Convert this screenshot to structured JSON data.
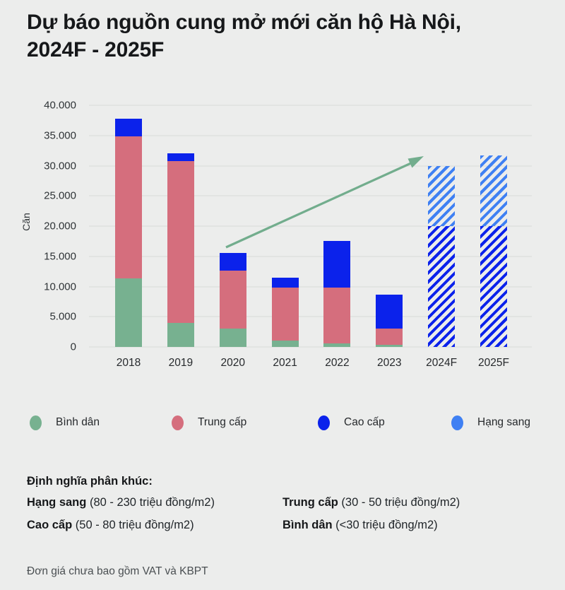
{
  "title": {
    "line1": "Dự báo nguồn cung mở mới căn hộ Hà Nội,",
    "line2": "2024F - 2025F"
  },
  "chart_data": {
    "type": "bar",
    "stacked": true,
    "title": "Dự báo nguồn cung mở mới căn hộ Hà Nội, 2024F - 2025F",
    "ylabel": "Căn",
    "ylim": [
      0,
      40000
    ],
    "grid": true,
    "yticks": [
      {
        "value": 0,
        "label": "0"
      },
      {
        "value": 5000,
        "label": "5.000"
      },
      {
        "value": 10000,
        "label": "10.000"
      },
      {
        "value": 15000,
        "label": "15.000"
      },
      {
        "value": 20000,
        "label": "20.000"
      },
      {
        "value": 25000,
        "label": "25.000"
      },
      {
        "value": 30000,
        "label": "30.000"
      },
      {
        "value": 35000,
        "label": "35.000"
      },
      {
        "value": 40000,
        "label": "40.000"
      }
    ],
    "categories": [
      "2018",
      "2019",
      "2020",
      "2021",
      "2022",
      "2023",
      "2024F",
      "2025F"
    ],
    "forecast": [
      false,
      false,
      false,
      false,
      false,
      false,
      true,
      true
    ],
    "series": [
      {
        "name": "Bình dân",
        "color": "#77B190",
        "values": [
          11400,
          4000,
          3000,
          1000,
          600,
          300,
          0,
          0
        ]
      },
      {
        "name": "Trung cấp",
        "color": "#D56E7D",
        "values": [
          23400,
          26800,
          9600,
          8800,
          9200,
          2700,
          0,
          0
        ]
      },
      {
        "name": "Cao cấp",
        "color": "#0B22EB",
        "values": [
          3000,
          1200,
          3000,
          1700,
          7700,
          5700,
          20000,
          20000
        ]
      },
      {
        "name": "Hạng sang",
        "color": "#3F80F3",
        "values": [
          0,
          0,
          0,
          0,
          0,
          0,
          10000,
          11700
        ]
      }
    ],
    "totals": [
      37800,
      32000,
      15600,
      11500,
      17500,
      8700,
      30000,
      31700
    ],
    "annotation": {
      "type": "trend-arrow",
      "color": "#72AD8D",
      "direction": "up-right"
    },
    "legend_position": "bottom"
  },
  "legend": {
    "items": [
      {
        "label": "Bình dân",
        "color": "#77B190"
      },
      {
        "label": "Trung cấp",
        "color": "#D56E7D"
      },
      {
        "label": "Cao cấp",
        "color": "#0B22EB"
      },
      {
        "label": "Hạng sang",
        "color": "#3F80F3"
      }
    ]
  },
  "definitions": {
    "heading": "Định nghĩa phân khúc:",
    "items": [
      {
        "term": "Hạng sang",
        "range": "(80 - 230 triệu đồng/m2)"
      },
      {
        "term": "Trung cấp",
        "range": "(30 - 50 triệu đồng/m2)"
      },
      {
        "term": "Cao cấp",
        "range": "(50 - 80 triệu đồng/m2)"
      },
      {
        "term": "Bình dân",
        "range": "(<30 triệu đồng/m2)"
      }
    ]
  },
  "footnote": "Đơn giá chưa bao gồm VAT và KBPT"
}
